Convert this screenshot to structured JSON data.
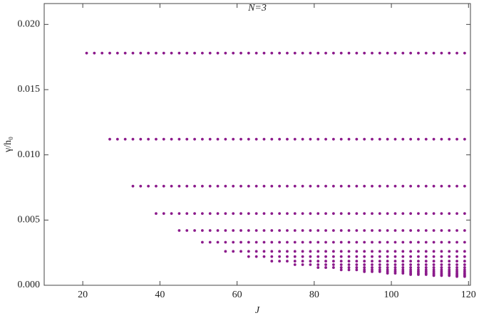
{
  "chart_data": {
    "type": "scatter",
    "title": "N=3",
    "x_label": "J",
    "y_label": "γ/h₀",
    "color": "#8b1a8b",
    "xlim": [
      10,
      120.5
    ],
    "ylim": [
      0,
      0.0216
    ],
    "xticks": [
      20,
      40,
      60,
      80,
      100,
      120
    ],
    "yticks": [
      {
        "value": 0,
        "label": "0.000"
      },
      0.005,
      {
        "value": 0.01,
        "label": "0.010"
      },
      0.015,
      {
        "value": 0.02,
        "label": "0.020"
      }
    ],
    "series": [
      {
        "x": [
          21,
          23,
          25,
          27,
          29,
          31,
          33,
          35,
          37,
          39,
          41,
          43,
          45,
          47,
          49,
          51,
          53,
          55,
          57,
          59,
          61,
          63,
          65,
          67,
          69,
          71,
          73,
          75,
          77,
          79,
          81,
          83,
          85,
          87,
          89,
          91,
          93,
          95,
          97,
          99,
          101,
          103,
          105,
          107,
          109,
          111,
          113,
          115,
          117,
          119
        ],
        "values": [
          0.0178,
          0.0178,
          0.0178,
          0.0178,
          0.0178,
          0.0178,
          0.0178,
          0.0178,
          0.0178,
          0.0178,
          0.0178,
          0.0178,
          0.0178,
          0.0178,
          0.0178,
          0.0178,
          0.0178,
          0.0178,
          0.0178,
          0.0178,
          0.0178,
          0.0178,
          0.0178,
          0.0178,
          0.0178,
          0.0178,
          0.0178,
          0.0178,
          0.0178,
          0.0178,
          0.0178,
          0.0178,
          0.0178,
          0.0178,
          0.0178,
          0.0178,
          0.0178,
          0.0178,
          0.0178,
          0.0178,
          0.0178,
          0.0178,
          0.0178,
          0.0178,
          0.0178,
          0.0178,
          0.0178,
          0.0178,
          0.0178,
          0.0178
        ]
      },
      {
        "x": [
          27,
          29,
          31,
          33,
          35,
          37,
          39,
          41,
          43,
          45,
          47,
          49,
          51,
          53,
          55,
          57,
          59,
          61,
          63,
          65,
          67,
          69,
          71,
          73,
          75,
          77,
          79,
          81,
          83,
          85,
          87,
          89,
          91,
          93,
          95,
          97,
          99,
          101,
          103,
          105,
          107,
          109,
          111,
          113,
          115,
          117,
          119
        ],
        "values": [
          0.0112,
          0.0112,
          0.0112,
          0.0112,
          0.0112,
          0.0112,
          0.0112,
          0.0112,
          0.0112,
          0.0112,
          0.0112,
          0.0112,
          0.0112,
          0.0112,
          0.0112,
          0.0112,
          0.0112,
          0.0112,
          0.0112,
          0.0112,
          0.0112,
          0.0112,
          0.0112,
          0.0112,
          0.0112,
          0.0112,
          0.0112,
          0.0112,
          0.0112,
          0.0112,
          0.0112,
          0.0112,
          0.0112,
          0.0112,
          0.0112,
          0.0112,
          0.0112,
          0.0112,
          0.0112,
          0.0112,
          0.0112,
          0.0112,
          0.0112,
          0.0112,
          0.0112,
          0.0112,
          0.0112
        ]
      },
      {
        "x": [
          33,
          35,
          37,
          39,
          41,
          43,
          45,
          47,
          49,
          51,
          53,
          55,
          57,
          59,
          61,
          63,
          65,
          67,
          69,
          71,
          73,
          75,
          77,
          79,
          81,
          83,
          85,
          87,
          89,
          91,
          93,
          95,
          97,
          99,
          101,
          103,
          105,
          107,
          109,
          111,
          113,
          115,
          117,
          119
        ],
        "values": [
          0.0076,
          0.0076,
          0.0076,
          0.0076,
          0.0076,
          0.0076,
          0.0076,
          0.0076,
          0.0076,
          0.0076,
          0.0076,
          0.0076,
          0.0076,
          0.0076,
          0.0076,
          0.0076,
          0.0076,
          0.0076,
          0.0076,
          0.0076,
          0.0076,
          0.0076,
          0.0076,
          0.0076,
          0.0076,
          0.0076,
          0.0076,
          0.0076,
          0.0076,
          0.0076,
          0.0076,
          0.0076,
          0.0076,
          0.0076,
          0.0076,
          0.0076,
          0.0076,
          0.0076,
          0.0076,
          0.0076,
          0.0076,
          0.0076,
          0.0076,
          0.0076
        ]
      },
      {
        "x": [
          39,
          41,
          43,
          45,
          47,
          49,
          51,
          53,
          55,
          57,
          59,
          61,
          63,
          65,
          67,
          69,
          71,
          73,
          75,
          77,
          79,
          81,
          83,
          85,
          87,
          89,
          91,
          93,
          95,
          97,
          99,
          101,
          103,
          105,
          107,
          109,
          111,
          113,
          115,
          117,
          119
        ],
        "values": [
          0.0055,
          0.0055,
          0.0055,
          0.0055,
          0.0055,
          0.0055,
          0.0055,
          0.0055,
          0.0055,
          0.0055,
          0.0055,
          0.0055,
          0.0055,
          0.0055,
          0.0055,
          0.0055,
          0.0055,
          0.0055,
          0.0055,
          0.0055,
          0.0055,
          0.0055,
          0.0055,
          0.0055,
          0.0055,
          0.0055,
          0.0055,
          0.0055,
          0.0055,
          0.0055,
          0.0055,
          0.0055,
          0.0055,
          0.0055,
          0.0055,
          0.0055,
          0.0055,
          0.0055,
          0.0055,
          0.0055,
          0.0055
        ]
      },
      {
        "x": [
          45,
          47,
          49,
          51,
          53,
          55,
          57,
          59,
          61,
          63,
          65,
          67,
          69,
          71,
          73,
          75,
          77,
          79,
          81,
          83,
          85,
          87,
          89,
          91,
          93,
          95,
          97,
          99,
          101,
          103,
          105,
          107,
          109,
          111,
          113,
          115,
          117,
          119
        ],
        "values": [
          0.0042,
          0.0042,
          0.0042,
          0.0042,
          0.0042,
          0.0042,
          0.0042,
          0.0042,
          0.0042,
          0.0042,
          0.0042,
          0.0042,
          0.0042,
          0.0042,
          0.0042,
          0.0042,
          0.0042,
          0.0042,
          0.0042,
          0.0042,
          0.0042,
          0.0042,
          0.0042,
          0.0042,
          0.0042,
          0.0042,
          0.0042,
          0.0042,
          0.0042,
          0.0042,
          0.0042,
          0.0042,
          0.0042,
          0.0042,
          0.0042,
          0.0042,
          0.0042,
          0.0042
        ]
      },
      {
        "x": [
          51,
          53,
          55,
          57,
          59,
          61,
          63,
          65,
          67,
          69,
          71,
          73,
          75,
          77,
          79,
          81,
          83,
          85,
          87,
          89,
          91,
          93,
          95,
          97,
          99,
          101,
          103,
          105,
          107,
          109,
          111,
          113,
          115,
          117,
          119
        ],
        "values": [
          0.0033,
          0.0033,
          0.0033,
          0.0033,
          0.0033,
          0.0033,
          0.0033,
          0.0033,
          0.0033,
          0.0033,
          0.0033,
          0.0033,
          0.0033,
          0.0033,
          0.0033,
          0.0033,
          0.0033,
          0.0033,
          0.0033,
          0.0033,
          0.0033,
          0.0033,
          0.0033,
          0.0033,
          0.0033,
          0.0033,
          0.0033,
          0.0033,
          0.0033,
          0.0033,
          0.0033,
          0.0033,
          0.0033,
          0.0033,
          0.0033
        ]
      },
      {
        "x": [
          57,
          59,
          61,
          63,
          65,
          67,
          69,
          71,
          73,
          75,
          77,
          79,
          81,
          83,
          85,
          87,
          89,
          91,
          93,
          95,
          97,
          99,
          101,
          103,
          105,
          107,
          109,
          111,
          113,
          115,
          117,
          119
        ],
        "values": [
          0.0026,
          0.0026,
          0.0026,
          0.0026,
          0.0026,
          0.0026,
          0.0026,
          0.0026,
          0.0026,
          0.0026,
          0.0026,
          0.0026,
          0.0026,
          0.0026,
          0.0026,
          0.0026,
          0.0026,
          0.0026,
          0.0026,
          0.0026,
          0.0026,
          0.0026,
          0.0026,
          0.0026,
          0.0026,
          0.0026,
          0.0026,
          0.0026,
          0.0026,
          0.0026,
          0.0026,
          0.0026
        ]
      },
      {
        "x": [
          63,
          65,
          67,
          69,
          71,
          73,
          75,
          77,
          79,
          81,
          83,
          85,
          87,
          89,
          91,
          93,
          95,
          97,
          99,
          101,
          103,
          105,
          107,
          109,
          111,
          113,
          115,
          117,
          119
        ],
        "values": [
          0.0022,
          0.0022,
          0.0022,
          0.0022,
          0.0022,
          0.0022,
          0.0022,
          0.0022,
          0.0022,
          0.0022,
          0.0022,
          0.0022,
          0.0022,
          0.0022,
          0.0022,
          0.0022,
          0.0022,
          0.0022,
          0.0022,
          0.0022,
          0.0022,
          0.0022,
          0.0022,
          0.0022,
          0.0022,
          0.0022,
          0.0022,
          0.0022,
          0.0022
        ]
      },
      {
        "x": [
          69,
          71,
          73,
          75,
          77,
          79,
          81,
          83,
          85,
          87,
          89,
          91,
          93,
          95,
          97,
          99,
          101,
          103,
          105,
          107,
          109,
          111,
          113,
          115,
          117,
          119
        ],
        "values": [
          0.00185,
          0.00185,
          0.00185,
          0.00185,
          0.00185,
          0.00185,
          0.00185,
          0.00185,
          0.00185,
          0.00185,
          0.00185,
          0.00185,
          0.00185,
          0.00185,
          0.00185,
          0.00185,
          0.00185,
          0.00185,
          0.00185,
          0.00185,
          0.00185,
          0.00185,
          0.00185,
          0.00185,
          0.00185,
          0.00185
        ]
      },
      {
        "x": [
          75,
          77,
          79,
          81,
          83,
          85,
          87,
          89,
          91,
          93,
          95,
          97,
          99,
          101,
          103,
          105,
          107,
          109,
          111,
          113,
          115,
          117,
          119
        ],
        "values": [
          0.00158,
          0.00158,
          0.00158,
          0.00158,
          0.00158,
          0.00158,
          0.00158,
          0.00158,
          0.00158,
          0.00158,
          0.00158,
          0.00158,
          0.00158,
          0.00158,
          0.00158,
          0.00158,
          0.00158,
          0.00158,
          0.00158,
          0.00158,
          0.00158,
          0.00158,
          0.00158
        ]
      },
      {
        "x": [
          81,
          83,
          85,
          87,
          89,
          91,
          93,
          95,
          97,
          99,
          101,
          103,
          105,
          107,
          109,
          111,
          113,
          115,
          117,
          119
        ],
        "values": [
          0.00136,
          0.00136,
          0.00136,
          0.00136,
          0.00136,
          0.00136,
          0.00136,
          0.00136,
          0.00136,
          0.00136,
          0.00136,
          0.00136,
          0.00136,
          0.00136,
          0.00136,
          0.00136,
          0.00136,
          0.00136,
          0.00136,
          0.00136
        ]
      },
      {
        "x": [
          87,
          89,
          91,
          93,
          95,
          97,
          99,
          101,
          103,
          105,
          107,
          109,
          111,
          113,
          115,
          117,
          119
        ],
        "values": [
          0.00118,
          0.00118,
          0.00118,
          0.00118,
          0.00118,
          0.00118,
          0.00118,
          0.00118,
          0.00118,
          0.00118,
          0.00118,
          0.00118,
          0.00118,
          0.00118,
          0.00118,
          0.00118,
          0.00118
        ]
      },
      {
        "x": [
          93,
          95,
          97,
          99,
          101,
          103,
          105,
          107,
          109,
          111,
          113,
          115,
          117,
          119
        ],
        "values": [
          0.00104,
          0.00104,
          0.00104,
          0.00104,
          0.00104,
          0.00104,
          0.00104,
          0.00104,
          0.00104,
          0.00104,
          0.00104,
          0.00104,
          0.00104,
          0.00104
        ]
      },
      {
        "x": [
          99,
          101,
          103,
          105,
          107,
          109,
          111,
          113,
          115,
          117,
          119
        ],
        "values": [
          0.00092,
          0.00092,
          0.00092,
          0.00092,
          0.00092,
          0.00092,
          0.00092,
          0.00092,
          0.00092,
          0.00092,
          0.00092
        ]
      },
      {
        "x": [
          105,
          107,
          109,
          111,
          113,
          115,
          117,
          119
        ],
        "values": [
          0.00082,
          0.00082,
          0.00082,
          0.00082,
          0.00082,
          0.00082,
          0.00082,
          0.00082
        ]
      },
      {
        "x": [
          111,
          113,
          115,
          117,
          119
        ],
        "values": [
          0.00074,
          0.00074,
          0.00074,
          0.00074,
          0.00074
        ]
      },
      {
        "x": [
          117,
          119
        ],
        "values": [
          0.00067,
          0.00067
        ]
      }
    ]
  }
}
